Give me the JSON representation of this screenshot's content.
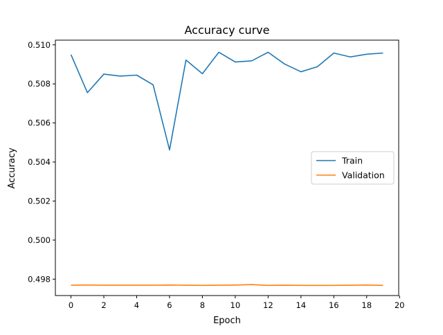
{
  "chart_data": {
    "type": "line",
    "title": "Accuracy curve",
    "xlabel": "Epoch",
    "ylabel": "Accuracy",
    "xlim": [
      -0.95,
      19.95
    ],
    "ylim": [
      0.49716,
      0.51024
    ],
    "xticks": [
      0,
      2,
      4,
      6,
      8,
      10,
      12,
      14,
      16,
      18,
      20
    ],
    "yticks": [
      0.498,
      0.5,
      0.502,
      0.504,
      0.506,
      0.508,
      0.51
    ],
    "ytick_labels": [
      "0.498",
      "0.500",
      "0.502",
      "0.504",
      "0.506",
      "0.508",
      "0.510"
    ],
    "grid": false,
    "legend_position": "center-right",
    "x": [
      0,
      1,
      2,
      3,
      4,
      5,
      6,
      7,
      8,
      9,
      10,
      11,
      12,
      13,
      14,
      15,
      16,
      17,
      18,
      19
    ],
    "series": [
      {
        "name": "Train",
        "color": "#1f77b4",
        "values": [
          0.5095,
          0.50755,
          0.5085,
          0.5084,
          0.50845,
          0.50795,
          0.50462,
          0.50922,
          0.50852,
          0.50962,
          0.50912,
          0.50918,
          0.50962,
          0.50902,
          0.50862,
          0.50888,
          0.50958,
          0.50938,
          0.50952,
          0.50958
        ]
      },
      {
        "name": "Validation",
        "color": "#ff7f0e",
        "values": [
          0.49769,
          0.4977,
          0.49769,
          0.49769,
          0.49769,
          0.49769,
          0.4977,
          0.49769,
          0.49768,
          0.49769,
          0.4977,
          0.49772,
          0.49768,
          0.49769,
          0.49768,
          0.49768,
          0.49768,
          0.49769,
          0.4977,
          0.49768
        ]
      }
    ]
  }
}
